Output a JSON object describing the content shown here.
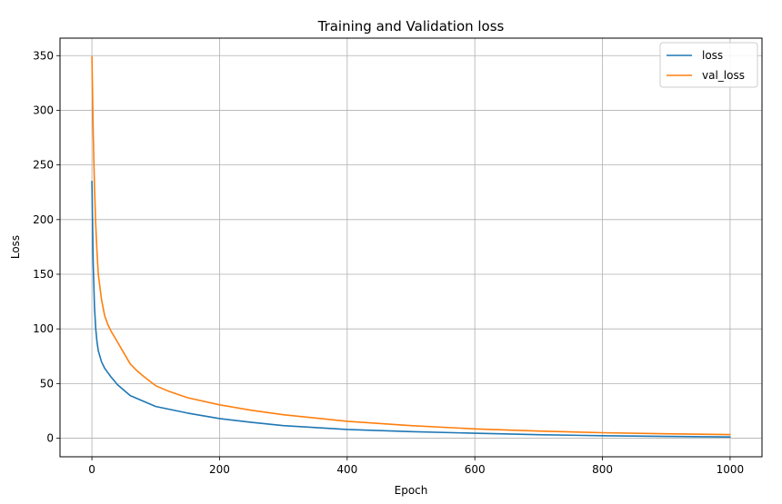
{
  "chart_data": {
    "type": "line",
    "title": "Training and Validation loss",
    "xlabel": "Epoch",
    "ylabel": "Loss",
    "xlim": [
      -50,
      1050
    ],
    "ylim": [
      -17,
      366
    ],
    "xticks": [
      0,
      200,
      400,
      600,
      800,
      1000
    ],
    "yticks": [
      0,
      50,
      100,
      150,
      200,
      250,
      300,
      350
    ],
    "grid": true,
    "legend_position": "top-right",
    "series": [
      {
        "name": "loss",
        "color": "#1f77b4",
        "x": [
          0,
          2,
          4,
          6,
          8,
          10,
          15,
          20,
          25,
          30,
          40,
          50,
          60,
          80,
          100,
          150,
          200,
          250,
          300,
          400,
          500,
          600,
          700,
          800,
          900,
          1000
        ],
        "y": [
          235,
          160,
          120,
          100,
          88,
          80,
          70,
          64,
          60,
          56,
          49,
          44,
          39,
          34,
          29,
          23,
          18,
          14.5,
          11.5,
          8,
          6,
          4.5,
          3.2,
          2.3,
          1.6,
          1.1
        ]
      },
      {
        "name": "val_loss",
        "color": "#ff7f0e",
        "x": [
          0,
          2,
          4,
          6,
          8,
          10,
          15,
          20,
          25,
          30,
          40,
          50,
          60,
          70,
          80,
          100,
          120,
          150,
          200,
          250,
          300,
          400,
          500,
          600,
          700,
          800,
          900,
          1000
        ],
        "y": [
          349,
          280,
          230,
          195,
          170,
          150,
          127,
          112,
          104,
          98,
          88,
          78,
          68,
          62,
          57,
          48,
          43,
          37,
          30.5,
          25.5,
          21.5,
          15.5,
          11.5,
          8.5,
          6.5,
          5,
          4,
          3.3
        ]
      }
    ]
  }
}
